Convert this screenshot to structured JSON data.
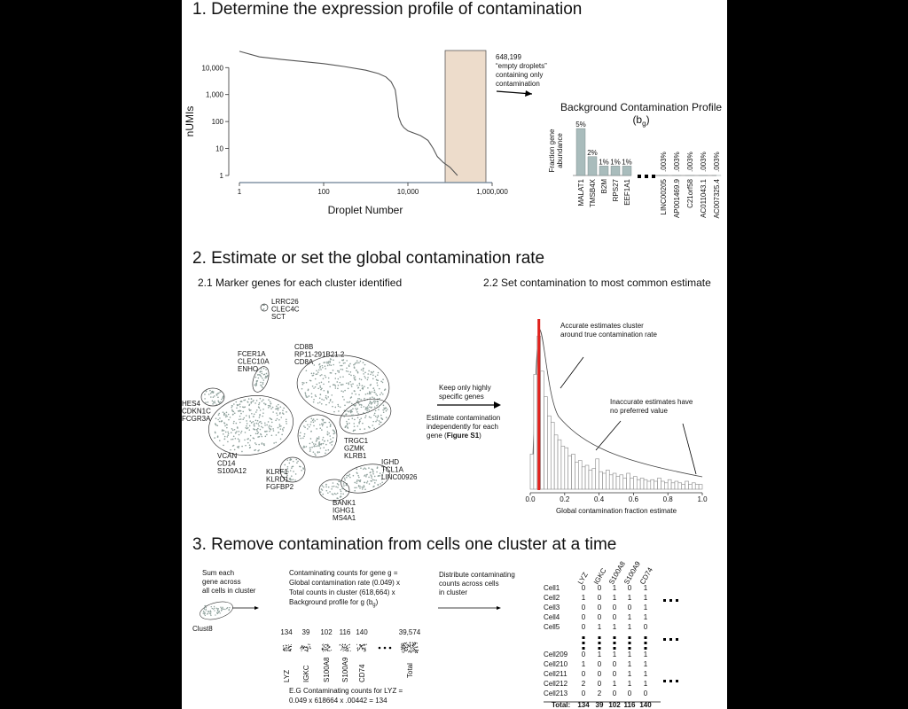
{
  "panel1": {
    "title": "1. Determine the expression profile of contamination",
    "knee_plot": {
      "type": "line",
      "log_scale": true,
      "x_label": "Droplet Number",
      "y_label": "nUMIs",
      "color": "#555555",
      "x": [
        1,
        3,
        10,
        30,
        100,
        300,
        1000,
        2000,
        3000,
        4000,
        5000,
        5500,
        6000,
        7000,
        8000,
        10000,
        20000,
        30000,
        40000,
        50000,
        70000,
        100000,
        150000
      ],
      "values": [
        40000,
        25000,
        20000,
        17000,
        14000,
        11000,
        8000,
        6000,
        4500,
        3000,
        1500,
        500,
        150,
        80,
        60,
        45,
        30,
        20,
        10,
        5,
        3,
        2,
        1
      ],
      "xlim": [
        1,
        1000000
      ],
      "ylim": [
        1,
        50000
      ],
      "xticks": [
        1,
        100,
        {
          "value": 10000,
          "label": "10,000"
        },
        {
          "value": 1000000,
          "label": "1,000,000"
        }
      ],
      "yticks": [
        1,
        10,
        100,
        {
          "value": 1000,
          "label": "1,000"
        },
        {
          "value": 10000,
          "label": "10,000"
        }
      ]
    },
    "annotation": [
      "648,199",
      "“empty droplets”",
      "containing only",
      "contamination"
    ],
    "profile": {
      "type": "bar",
      "title": "Background Contamination Profile",
      "symbol": [
        "(b",
        "g",
        ")"
      ],
      "y_label": [
        "Fraction gene",
        "abundance"
      ],
      "color": "#a9bcbc",
      "categories": [
        "MALAT1",
        "TMSB4X",
        "B2M",
        "RPS27",
        "EEF1A1",
        "LINC00205",
        "AP001469.9",
        "C21orf58",
        "AC011043.1",
        "AC007325.4"
      ],
      "values": [
        5,
        2,
        1,
        1,
        1,
        0.003,
        0.003,
        0.003,
        0.003,
        0.003
      ],
      "value_labels": [
        "5%",
        "2%",
        "1%",
        "1%",
        "1%",
        ".003%",
        ".003%",
        ".003%",
        ".003%",
        ".003%"
      ],
      "ylim": [
        0,
        5
      ]
    }
  },
  "panel2": {
    "title": "2. Estimate or set the global contamination rate",
    "subtitle_left": "2.1 Marker genes for each cluster identified",
    "subtitle_right": "2.2 Set contamination to most common estimate",
    "cluster_labels": [
      [
        "LRRC26",
        "CLEC4C",
        "SCT"
      ],
      [
        "FCER1A",
        "CLEC10A",
        "ENHO"
      ],
      [
        "CD8B",
        "RP11-291B21.2",
        "CD8A"
      ],
      [
        "HES4",
        "CDKN1C",
        "FCGR3A"
      ],
      [
        "VCAN",
        "CD14",
        "S100A12"
      ],
      [
        "TRGC1",
        "GZMK",
        "KLRB1"
      ],
      [
        "KLRF1",
        "KLRD1",
        "FGFBP2"
      ],
      [
        "IGHD",
        "TCL1A",
        "LINC00926"
      ],
      [
        "BANK1",
        "IGHG1",
        "MS4A1"
      ]
    ],
    "arrow_text": [
      "Keep only highly",
      "specific genes"
    ],
    "method_text": {
      "lines": [
        "Estimate contamination",
        "independently for each"
      ],
      "last_line": [
        "gene (",
        "Figure S1",
        ")"
      ]
    },
    "histogram": {
      "type": "histogram",
      "x_label": "Global contamination fraction estimate",
      "color": "#888888",
      "bins": [
        0,
        0.02,
        0.04,
        0.06,
        0.08,
        0.1,
        0.12,
        0.14,
        0.16,
        0.18,
        0.2,
        0.22,
        0.24,
        0.26,
        0.28,
        0.3,
        0.32,
        0.34,
        0.36,
        0.38,
        0.4,
        0.42,
        0.44,
        0.46,
        0.48,
        0.5,
        0.52,
        0.54,
        0.56,
        0.58,
        0.6,
        0.62,
        0.64,
        0.66,
        0.68,
        0.7,
        0.72,
        0.74,
        0.76,
        0.78,
        0.8,
        0.82,
        0.84,
        0.86,
        0.88,
        0.9,
        0.92,
        0.94,
        0.96,
        0.98,
        1
      ],
      "counts": [
        22,
        72,
        96,
        74,
        58,
        46,
        42,
        34,
        31,
        27,
        26,
        21,
        22,
        17,
        18,
        14,
        15,
        12,
        13,
        19,
        11,
        10,
        12,
        9,
        10,
        8,
        9,
        7,
        10,
        7,
        8,
        6,
        7,
        6,
        5,
        6,
        5,
        7,
        5,
        4,
        6,
        4,
        5,
        4,
        3,
        5,
        3,
        4,
        3,
        3
      ],
      "xlim": [
        0,
        1
      ],
      "ylim": [
        0,
        100
      ],
      "xticks": [
        {
          "value": 0,
          "label": "0.0"
        },
        0.2,
        0.4,
        0.6,
        0.8,
        {
          "value": 1,
          "label": "1.0"
        }
      ],
      "estimate": 0.05,
      "estimate_color": "#e0201b",
      "annotations": [
        [
          "Accurate estimates cluster",
          "around true contamination rate"
        ],
        [
          "Inaccurate estimates have",
          "no preferred value"
        ]
      ]
    }
  },
  "panel3": {
    "title": "3. Remove contamination from cells one cluster at a time",
    "sum_text": [
      "Sum each",
      "gene across",
      "all cells in cluster"
    ],
    "cluster_name": "Clust8",
    "formula": {
      "lines": [
        "Contaminating counts for gene g =",
        "Global contamination rate (0.049) x",
        "Total counts in cluster (618,664) x"
      ],
      "last_line": [
        "Background profile for g (b",
        "g",
        ")"
      ]
    },
    "genes": [
      "LYZ",
      "IGKC",
      "S100A8",
      "S100A9",
      "CD74",
      "Total"
    ],
    "gene_counts": [
      134,
      39,
      102,
      116,
      140,
      {
        "value": 39574,
        "label": "39,574"
      }
    ],
    "example": [
      "E.G Contaminating counts for LYZ =",
      "0.049 x 618664 x .00442 = 134"
    ],
    "distribute_text": [
      "Distribute contaminating",
      "counts across cells",
      "in cluster"
    ],
    "table": {
      "columns": [
        "LYZ",
        "IGKC",
        "S100A8",
        "S100A9",
        "CD74"
      ],
      "rows": [
        [
          "Cell1",
          0,
          0,
          1,
          0,
          1
        ],
        [
          "Cell2",
          1,
          0,
          1,
          1,
          1
        ],
        [
          "Cell3",
          0,
          0,
          0,
          0,
          1
        ],
        [
          "Cell4",
          0,
          0,
          0,
          1,
          1
        ],
        [
          "Cell5",
          0,
          1,
          1,
          1,
          0
        ],
        [
          "Cell209",
          0,
          1,
          1,
          1,
          1
        ],
        [
          "Cell210",
          1,
          0,
          0,
          1,
          1
        ],
        [
          "Cell211",
          0,
          0,
          0,
          1,
          1
        ],
        [
          "Cell212",
          2,
          0,
          1,
          1,
          1
        ],
        [
          "Cell213",
          0,
          2,
          0,
          0,
          0
        ]
      ],
      "total": [
        "Total:",
        134,
        39,
        102,
        116,
        140
      ]
    }
  }
}
